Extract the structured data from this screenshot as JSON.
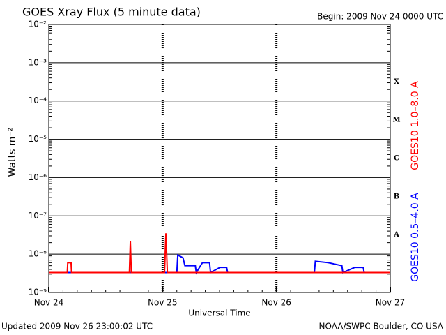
{
  "chart_data": {
    "type": "line",
    "title": "GOES Xray Flux (5 minute data)",
    "subtitle": "Begin:  2009 Nov 24 0000 UTC",
    "x_label": "Universal Time",
    "y_label": "Watts m⁻²",
    "footer_left": "Updated 2009 Nov 26 23:00:02 UTC",
    "footer_right": "NOAA/SWPC Boulder, CO USA",
    "flare_classes": [
      "A",
      "B",
      "C",
      "M",
      "X"
    ],
    "yscale": "log",
    "grid": true,
    "xlim": [
      0,
      72
    ],
    "xticks": [
      {
        "value": 0,
        "label": "Nov 24"
      },
      {
        "value": 24,
        "label": "Nov 25"
      },
      {
        "value": 48,
        "label": "Nov 26"
      },
      {
        "value": 72,
        "label": "Nov 27"
      }
    ],
    "ylim": [
      1e-09,
      0.01
    ],
    "yticks": [
      {
        "value": 1e-09,
        "label": "10⁻⁹"
      },
      {
        "value": 1e-08,
        "label": "10⁻⁸"
      },
      {
        "value": 1e-07,
        "label": "10⁻⁷"
      },
      {
        "value": 1e-06,
        "label": "10⁻⁶"
      },
      {
        "value": 1e-05,
        "label": "10⁻⁵"
      },
      {
        "value": 0.0001,
        "label": "10⁻⁴"
      },
      {
        "value": 0.001,
        "label": "10⁻³"
      },
      {
        "value": 0.01,
        "label": "10⁻²"
      }
    ],
    "series": [
      {
        "name": "GOES10 1.0–8.0 A",
        "color": "#ff0000",
        "x": [
          0,
          3.9,
          4.0,
          4.7,
          4.8,
          17.0,
          17.2,
          17.4,
          24.4,
          24.7,
          25.0,
          72
        ],
        "values": [
          3.3e-09,
          3.3e-09,
          6e-09,
          6e-09,
          3.3e-09,
          3.3e-09,
          2.2e-08,
          3.3e-09,
          3.3e-09,
          3.5e-08,
          3.3e-09,
          3.3e-09
        ]
      },
      {
        "name": "GOES10 0.5–4.0 A",
        "color": "#0000ff",
        "x": [
          0,
          24.5,
          27.0,
          27.2,
          28.3,
          28.7,
          30.9,
          31.1,
          32.4,
          33.9,
          34.1,
          36.1,
          37.5,
          37.7,
          56.0,
          56.2,
          58.9,
          61.8,
          62.0,
          64.5,
          66.3,
          66.5,
          72
        ],
        "values": [
          3.3e-09,
          3.3e-09,
          3.3e-09,
          9.5e-09,
          8e-09,
          5e-09,
          5e-09,
          3.3e-09,
          6e-09,
          6e-09,
          3.3e-09,
          4.5e-09,
          4.5e-09,
          3.3e-09,
          3.3e-09,
          6.5e-09,
          6e-09,
          5e-09,
          3.3e-09,
          4.5e-09,
          4.5e-09,
          3.3e-09,
          3.3e-09
        ]
      }
    ]
  }
}
